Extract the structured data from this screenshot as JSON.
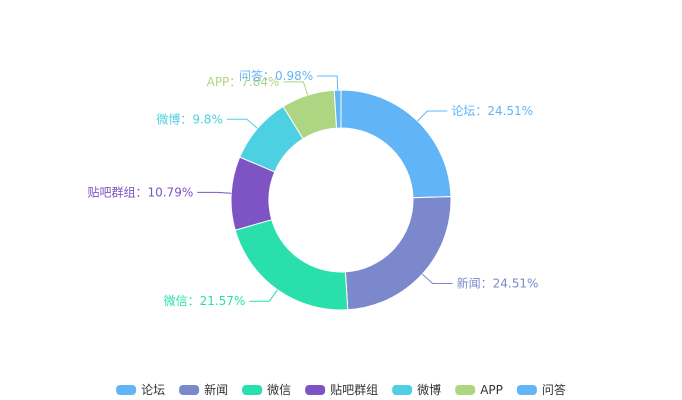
{
  "chart_data": {
    "type": "pie",
    "variant": "donut",
    "title": "",
    "label_separator": "：",
    "slices": [
      {
        "name": "论坛",
        "percent": 24.51,
        "color": "#61b4f6"
      },
      {
        "name": "新闻",
        "percent": 24.51,
        "color": "#7b88cc"
      },
      {
        "name": "微信",
        "percent": 21.57,
        "color": "#29e0ad"
      },
      {
        "name": "贴吧群组",
        "percent": 10.79,
        "color": "#7e53c3"
      },
      {
        "name": "微博",
        "percent": 9.8,
        "color": "#4dd0e1"
      },
      {
        "name": "APP",
        "percent": 7.84,
        "color": "#aed581"
      },
      {
        "name": "问答",
        "percent": 0.98,
        "color": "#64b5f6"
      }
    ],
    "legend": {
      "position": "bottom-center",
      "items": [
        "论坛",
        "新闻",
        "微信",
        "贴吧群组",
        "微博",
        "APP",
        "问答"
      ]
    }
  }
}
